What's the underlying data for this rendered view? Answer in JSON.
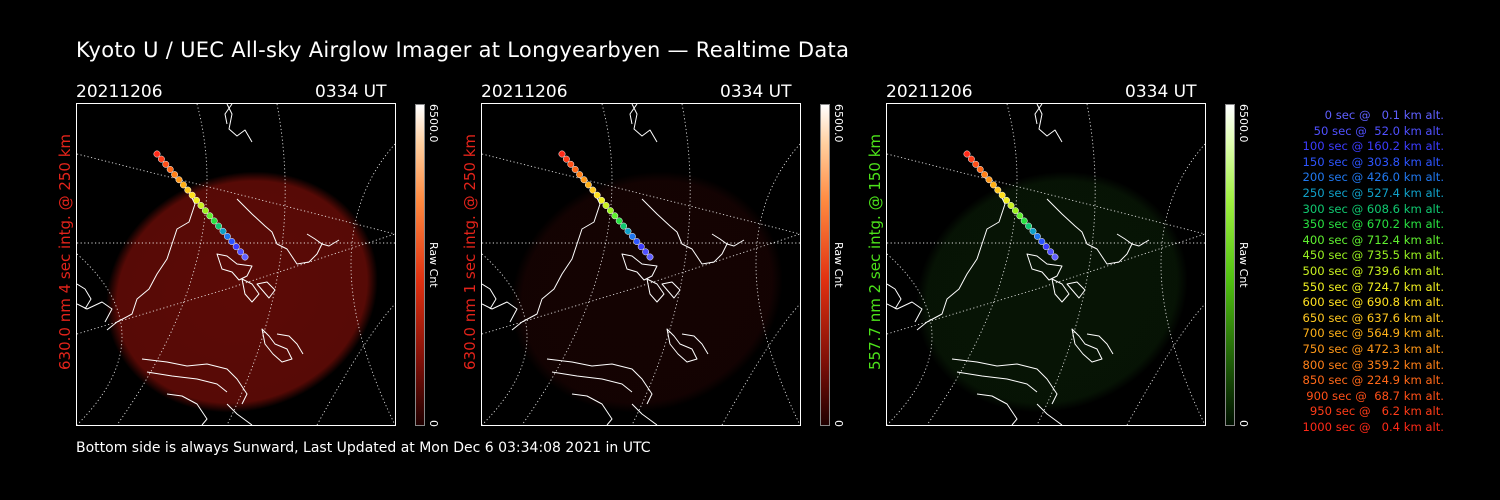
{
  "title": "Kyoto U / UEC All-sky Airglow Imager at Longyearbyen — Realtime Data",
  "footer": "Bottom side is always Sunward, Last Updated at Mon Dec  6 03:34:08 2021 in UTC",
  "colors": {
    "red_channel": "#ff2a00",
    "green_channel": "#30e000",
    "background": "#000000"
  },
  "panels": [
    {
      "date": "20211206",
      "time": "0334 UT",
      "side_label": "630.0 nm 4 sec intg. @ 250 km",
      "label_color": "#e2231a",
      "cbar_max": "6500.0",
      "cbar_min": "0",
      "cbar_unit": "Raw Cnt",
      "cbar_scheme": "red",
      "glow_color": "#7a0e08",
      "glow_level": 0.75
    },
    {
      "date": "20211206",
      "time": "0334 UT",
      "side_label": "630.0 nm 1 sec intg. @ 250 km",
      "label_color": "#e2231a",
      "cbar_max": "6500.0",
      "cbar_min": "0",
      "cbar_unit": "Raw Cnt",
      "cbar_scheme": "red",
      "glow_color": "#3a0806",
      "glow_level": 0.35
    },
    {
      "date": "20211206",
      "time": "0334 UT",
      "side_label": "557.7 nm 2 sec intg. @ 150 km",
      "label_color": "#4ce21a",
      "cbar_max": "6500.0",
      "cbar_min": "0",
      "cbar_unit": "Raw Cnt",
      "cbar_scheme": "green",
      "glow_color": "#143a0e",
      "glow_level": 0.35
    }
  ],
  "legend": [
    {
      "text": "0 sec @   0.1 km alt.",
      "color": "#6060ff"
    },
    {
      "text": "50 sec @  52.0 km alt.",
      "color": "#5050ff"
    },
    {
      "text": "100 sec @ 160.2 km alt.",
      "color": "#3c3cff"
    },
    {
      "text": "150 sec @ 303.8 km alt.",
      "color": "#2d55ff"
    },
    {
      "text": "200 sec @ 426.0 km alt.",
      "color": "#2078f0"
    },
    {
      "text": "250 sec @ 527.4 km alt.",
      "color": "#10a0c8"
    },
    {
      "text": "300 sec @ 608.6 km alt.",
      "color": "#10c870"
    },
    {
      "text": "350 sec @ 670.2 km alt.",
      "color": "#28e040"
    },
    {
      "text": "400 sec @ 712.4 km alt.",
      "color": "#60f030"
    },
    {
      "text": "450 sec @ 735.5 km alt.",
      "color": "#98f020"
    },
    {
      "text": "500 sec @ 739.6 km alt.",
      "color": "#c8f020"
    },
    {
      "text": "550 sec @ 724.7 km alt.",
      "color": "#f0f020"
    },
    {
      "text": "600 sec @ 690.8 km alt.",
      "color": "#ffe020"
    },
    {
      "text": "650 sec @ 637.6 km alt.",
      "color": "#ffc820"
    },
    {
      "text": "700 sec @ 564.9 km alt.",
      "color": "#ffb018"
    },
    {
      "text": "750 sec @ 472.3 km alt.",
      "color": "#ff9818"
    },
    {
      "text": "800 sec @ 359.2 km alt.",
      "color": "#ff8018"
    },
    {
      "text": "850 sec @ 224.9 km alt.",
      "color": "#ff6818"
    },
    {
      "text": "900 sec @  68.7 km alt.",
      "color": "#ff5018"
    },
    {
      "text": "950 sec @   6.2 km alt.",
      "color": "#ff3c18"
    },
    {
      "text": "1000 sec @   0.4 km alt.",
      "color": "#ff2a18"
    }
  ]
}
